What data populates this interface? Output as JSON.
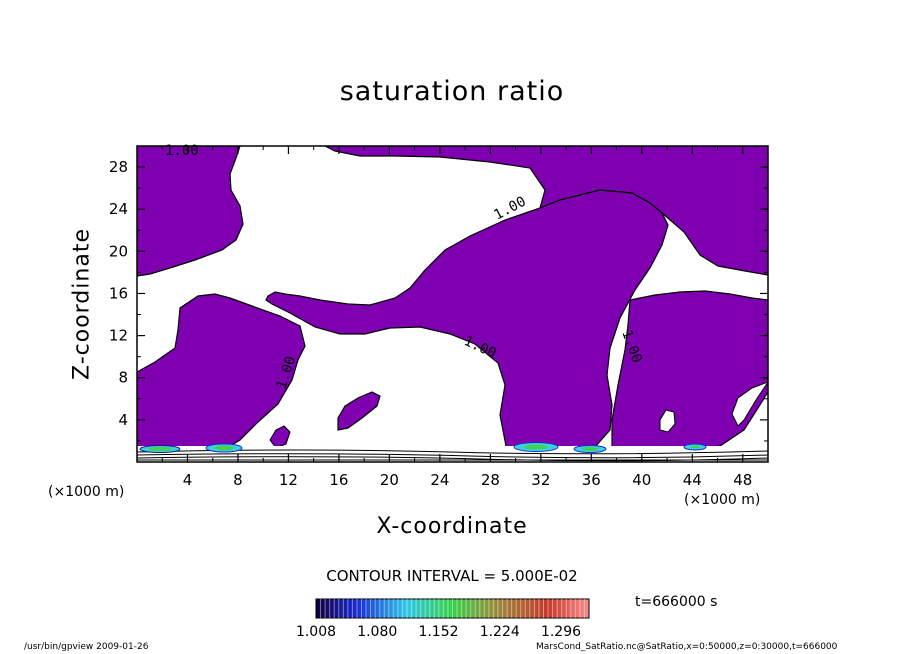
{
  "chart_data": {
    "type": "contour",
    "title": "saturation ratio",
    "xlabel": "X-coordinate",
    "ylabel": "Z-coordinate",
    "x_unit": "(×1000 m)",
    "y_unit": "(×1000 m)",
    "xlim": [
      0,
      50
    ],
    "ylim": [
      0,
      30
    ],
    "x_ticks": [
      4,
      8,
      12,
      16,
      20,
      24,
      28,
      32,
      36,
      40,
      44,
      48
    ],
    "y_ticks": [
      4,
      8,
      12,
      16,
      20,
      24,
      28
    ],
    "contour_interval_text": "CONTOUR INTERVAL = 5.000E-02",
    "contour_level_label": "1.00",
    "colorbar_ticks": [
      "1.008",
      "1.080",
      "1.152",
      "1.224",
      "1.296"
    ],
    "fill_color": "#7f00b0",
    "time_text": "t=666000 s",
    "footer_left": "/usr/bin/gpview   2009-01-26",
    "footer_right": "MarsCond_SatRatio.nc@SatRatio,x=0:50000,z=0:30000,t=666000"
  }
}
